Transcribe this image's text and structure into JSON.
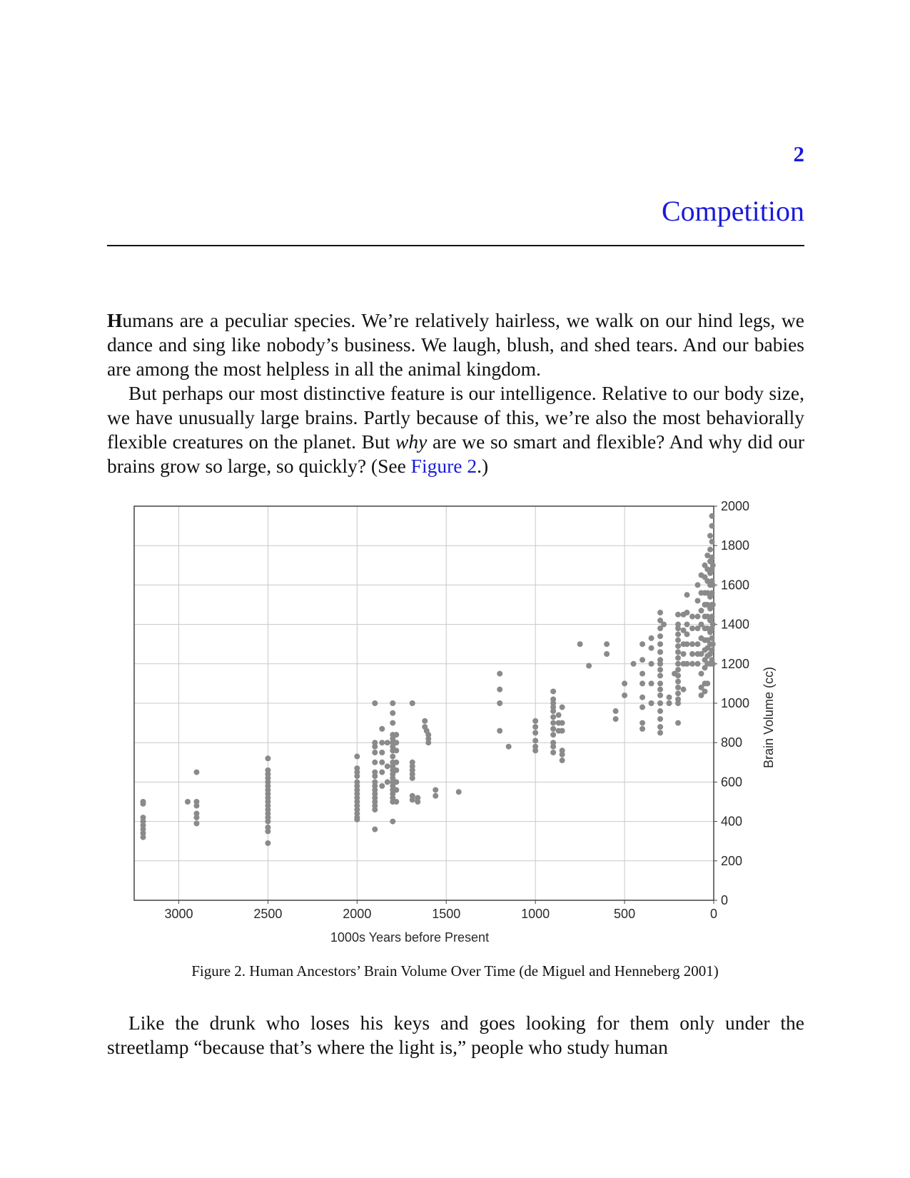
{
  "chapter": {
    "number": "2",
    "title": "Competition"
  },
  "intro": {
    "lead": "H",
    "rest": "umans are a peculiar species. We’re relatively hairless, we walk on our hind legs, we dance and sing like nobody’s business. We laugh, blush, and shed tears. And our babies are among the most helpless in all the animal kingdom."
  },
  "para2": {
    "a": "But perhaps our most distinctive feature is our intelligence. Relative to our body size, we have unusually large brains. Partly because of this, we’re also the most behaviorally flexible creatures on the planet. But ",
    "em": "why",
    "b": " are we so smart and flexible? And why did our brains grow so large, so quickly? (See ",
    "link": "Figure 2",
    "c": ".)"
  },
  "caption": "Figure 2. Human Ancestors’ Brain Volume Over Time (de Miguel and Henneberg 2001)",
  "para3": "Like the drunk who loses his keys and goes looking for them only under the streetlamp “because that’s where the light is,” people who study human",
  "chart_data": {
    "type": "scatter",
    "xlabel": "1000s Years before Present",
    "ylabel": "Brain Volume (cc)",
    "x_reversed": true,
    "xlim": [
      3250,
      0
    ],
    "ylim": [
      0,
      2000
    ],
    "xticks": [
      3000,
      2500,
      2000,
      1500,
      1000,
      500,
      0
    ],
    "yticks": [
      0,
      200,
      400,
      600,
      800,
      1000,
      1200,
      1400,
      1600,
      1800,
      2000
    ],
    "ytick_side": "right",
    "grid": true,
    "point_color": "#8a8a8a",
    "points": [
      [
        3200,
        500
      ],
      [
        3200,
        490
      ],
      [
        3200,
        420
      ],
      [
        3200,
        400
      ],
      [
        3200,
        380
      ],
      [
        3200,
        360
      ],
      [
        3200,
        340
      ],
      [
        3200,
        320
      ],
      [
        2950,
        500
      ],
      [
        2900,
        500
      ],
      [
        2900,
        480
      ],
      [
        2900,
        440
      ],
      [
        2900,
        420
      ],
      [
        2900,
        390
      ],
      [
        2900,
        650
      ],
      [
        2500,
        720
      ],
      [
        2500,
        660
      ],
      [
        2500,
        640
      ],
      [
        2500,
        620
      ],
      [
        2500,
        600
      ],
      [
        2500,
        580
      ],
      [
        2500,
        560
      ],
      [
        2500,
        540
      ],
      [
        2500,
        520
      ],
      [
        2500,
        500
      ],
      [
        2500,
        480
      ],
      [
        2500,
        460
      ],
      [
        2500,
        440
      ],
      [
        2500,
        420
      ],
      [
        2500,
        400
      ],
      [
        2500,
        370
      ],
      [
        2500,
        350
      ],
      [
        2500,
        290
      ],
      [
        2000,
        730
      ],
      [
        2000,
        670
      ],
      [
        2000,
        650
      ],
      [
        2000,
        630
      ],
      [
        2000,
        600
      ],
      [
        2000,
        580
      ],
      [
        2000,
        560
      ],
      [
        2000,
        540
      ],
      [
        2000,
        520
      ],
      [
        2000,
        500
      ],
      [
        2000,
        480
      ],
      [
        2000,
        460
      ],
      [
        2000,
        440
      ],
      [
        2000,
        420
      ],
      [
        2000,
        410
      ],
      [
        1900,
        360
      ],
      [
        1900,
        460
      ],
      [
        1900,
        480
      ],
      [
        1900,
        500
      ],
      [
        1900,
        520
      ],
      [
        1900,
        540
      ],
      [
        1900,
        560
      ],
      [
        1900,
        580
      ],
      [
        1900,
        600
      ],
      [
        1900,
        630
      ],
      [
        1900,
        650
      ],
      [
        1900,
        700
      ],
      [
        1900,
        750
      ],
      [
        1900,
        780
      ],
      [
        1900,
        800
      ],
      [
        1900,
        1000
      ],
      [
        1860,
        870
      ],
      [
        1860,
        800
      ],
      [
        1860,
        750
      ],
      [
        1860,
        700
      ],
      [
        1860,
        650
      ],
      [
        1860,
        580
      ],
      [
        1830,
        800
      ],
      [
        1830,
        680
      ],
      [
        1830,
        600
      ],
      [
        1800,
        1000
      ],
      [
        1800,
        950
      ],
      [
        1800,
        900
      ],
      [
        1800,
        840
      ],
      [
        1800,
        820
      ],
      [
        1800,
        800
      ],
      [
        1800,
        780
      ],
      [
        1800,
        760
      ],
      [
        1800,
        730
      ],
      [
        1800,
        700
      ],
      [
        1800,
        680
      ],
      [
        1800,
        660
      ],
      [
        1800,
        640
      ],
      [
        1800,
        620
      ],
      [
        1800,
        600
      ],
      [
        1800,
        580
      ],
      [
        1800,
        560
      ],
      [
        1800,
        540
      ],
      [
        1800,
        520
      ],
      [
        1800,
        500
      ],
      [
        1800,
        400
      ],
      [
        1780,
        840
      ],
      [
        1780,
        800
      ],
      [
        1780,
        760
      ],
      [
        1780,
        700
      ],
      [
        1780,
        660
      ],
      [
        1780,
        600
      ],
      [
        1780,
        560
      ],
      [
        1780,
        500
      ],
      [
        1690,
        1000
      ],
      [
        1690,
        700
      ],
      [
        1690,
        680
      ],
      [
        1690,
        660
      ],
      [
        1690,
        640
      ],
      [
        1690,
        620
      ],
      [
        1690,
        530
      ],
      [
        1690,
        510
      ],
      [
        1660,
        520
      ],
      [
        1660,
        500
      ],
      [
        1620,
        910
      ],
      [
        1620,
        880
      ],
      [
        1610,
        860
      ],
      [
        1600,
        840
      ],
      [
        1600,
        820
      ],
      [
        1600,
        800
      ],
      [
        1560,
        560
      ],
      [
        1560,
        530
      ],
      [
        1430,
        550
      ],
      [
        1200,
        1150
      ],
      [
        1200,
        1070
      ],
      [
        1200,
        1000
      ],
      [
        1200,
        860
      ],
      [
        1150,
        780
      ],
      [
        1000,
        910
      ],
      [
        1000,
        880
      ],
      [
        1000,
        850
      ],
      [
        1000,
        810
      ],
      [
        1000,
        780
      ],
      [
        1000,
        760
      ],
      [
        900,
        1060
      ],
      [
        900,
        1020
      ],
      [
        900,
        1000
      ],
      [
        900,
        980
      ],
      [
        900,
        960
      ],
      [
        900,
        930
      ],
      [
        900,
        900
      ],
      [
        900,
        870
      ],
      [
        900,
        840
      ],
      [
        900,
        800
      ],
      [
        900,
        780
      ],
      [
        900,
        750
      ],
      [
        870,
        940
      ],
      [
        870,
        900
      ],
      [
        870,
        860
      ],
      [
        850,
        980
      ],
      [
        850,
        900
      ],
      [
        850,
        860
      ],
      [
        850,
        760
      ],
      [
        850,
        740
      ],
      [
        850,
        710
      ],
      [
        750,
        1300
      ],
      [
        700,
        1190
      ],
      [
        600,
        1300
      ],
      [
        600,
        1250
      ],
      [
        550,
        960
      ],
      [
        550,
        920
      ],
      [
        500,
        1100
      ],
      [
        500,
        1040
      ],
      [
        450,
        1200
      ],
      [
        400,
        1300
      ],
      [
        400,
        1220
      ],
      [
        400,
        1150
      ],
      [
        400,
        1100
      ],
      [
        400,
        1030
      ],
      [
        400,
        980
      ],
      [
        400,
        900
      ],
      [
        400,
        870
      ],
      [
        350,
        1330
      ],
      [
        350,
        1280
      ],
      [
        350,
        1200
      ],
      [
        350,
        1100
      ],
      [
        350,
        1000
      ],
      [
        300,
        1460
      ],
      [
        300,
        1420
      ],
      [
        300,
        1380
      ],
      [
        300,
        1340
      ],
      [
        300,
        1300
      ],
      [
        300,
        1260
      ],
      [
        300,
        1220
      ],
      [
        300,
        1200
      ],
      [
        300,
        1170
      ],
      [
        300,
        1140
      ],
      [
        300,
        1100
      ],
      [
        300,
        1070
      ],
      [
        300,
        1040
      ],
      [
        300,
        1000
      ],
      [
        300,
        960
      ],
      [
        300,
        920
      ],
      [
        300,
        880
      ],
      [
        300,
        850
      ],
      [
        280,
        1400
      ],
      [
        250,
        1030
      ],
      [
        250,
        1000
      ],
      [
        220,
        1150
      ],
      [
        200,
        900
      ],
      [
        200,
        1450
      ],
      [
        200,
        1400
      ],
      [
        200,
        1380
      ],
      [
        200,
        1350
      ],
      [
        200,
        1320
      ],
      [
        200,
        1290
      ],
      [
        200,
        1260
      ],
      [
        200,
        1230
      ],
      [
        200,
        1200
      ],
      [
        200,
        1170
      ],
      [
        200,
        1140
      ],
      [
        200,
        1110
      ],
      [
        200,
        1080
      ],
      [
        200,
        1050
      ],
      [
        200,
        1020
      ],
      [
        200,
        1000
      ],
      [
        170,
        1450
      ],
      [
        170,
        1370
      ],
      [
        170,
        1300
      ],
      [
        170,
        1250
      ],
      [
        170,
        1200
      ],
      [
        170,
        1070
      ],
      [
        150,
        1550
      ],
      [
        150,
        1460
      ],
      [
        150,
        1400
      ],
      [
        150,
        1350
      ],
      [
        150,
        1300
      ],
      [
        150,
        1200
      ],
      [
        120,
        1440
      ],
      [
        120,
        1380
      ],
      [
        120,
        1300
      ],
      [
        120,
        1250
      ],
      [
        120,
        1200
      ],
      [
        90,
        1600
      ],
      [
        90,
        1520
      ],
      [
        90,
        1440
      ],
      [
        90,
        1380
      ],
      [
        90,
        1300
      ],
      [
        90,
        1250
      ],
      [
        90,
        1200
      ],
      [
        70,
        1650
      ],
      [
        70,
        1560
      ],
      [
        70,
        1470
      ],
      [
        70,
        1400
      ],
      [
        70,
        1330
      ],
      [
        70,
        1250
      ],
      [
        70,
        1150
      ],
      [
        70,
        1080
      ],
      [
        70,
        1040
      ],
      [
        50,
        1700
      ],
      [
        50,
        1640
      ],
      [
        50,
        1560
      ],
      [
        50,
        1500
      ],
      [
        50,
        1440
      ],
      [
        50,
        1380
      ],
      [
        50,
        1320
      ],
      [
        50,
        1270
      ],
      [
        50,
        1220
      ],
      [
        50,
        1180
      ],
      [
        50,
        1100
      ],
      [
        50,
        1060
      ],
      [
        35,
        1750
      ],
      [
        35,
        1680
      ],
      [
        35,
        1620
      ],
      [
        35,
        1560
      ],
      [
        35,
        1500
      ],
      [
        35,
        1440
      ],
      [
        35,
        1380
      ],
      [
        35,
        1320
      ],
      [
        35,
        1280
      ],
      [
        35,
        1240
      ],
      [
        35,
        1200
      ],
      [
        35,
        1100
      ],
      [
        20,
        1850
      ],
      [
        20,
        1780
      ],
      [
        20,
        1720
      ],
      [
        20,
        1660
      ],
      [
        20,
        1600
      ],
      [
        20,
        1540
      ],
      [
        20,
        1480
      ],
      [
        20,
        1420
      ],
      [
        20,
        1360
      ],
      [
        20,
        1300
      ],
      [
        20,
        1250
      ],
      [
        20,
        1200
      ],
      [
        10,
        1950
      ],
      [
        10,
        1900
      ],
      [
        10,
        1820
      ],
      [
        10,
        1740
      ],
      [
        10,
        1680
      ],
      [
        10,
        1620
      ],
      [
        10,
        1560
      ],
      [
        10,
        1500
      ],
      [
        10,
        1440
      ],
      [
        10,
        1380
      ],
      [
        10,
        1330
      ],
      [
        10,
        1270
      ],
      [
        10,
        1220
      ],
      [
        5,
        1700
      ],
      [
        5,
        1600
      ],
      [
        5,
        1500
      ],
      [
        5,
        1400
      ],
      [
        5,
        1300
      ],
      [
        5,
        1200
      ]
    ]
  }
}
